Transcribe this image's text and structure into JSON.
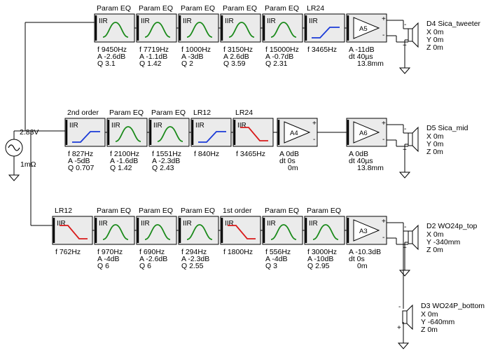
{
  "source": {
    "voltage": "2.83V",
    "resistance": "1mΩ"
  },
  "block_iir_label": "IIR",
  "chains": [
    {
      "blocks": [
        {
          "title": "Param EQ",
          "icon": "bell-curve-icon",
          "color": "#1a8a1a",
          "params": [
            "f  9450Hz",
            "A  -2.6dB",
            "Q  3.1"
          ]
        },
        {
          "title": "Param EQ",
          "icon": "bell-curve-icon",
          "color": "#1a8a1a",
          "params": [
            "f  7719Hz",
            "A  -1.1dB",
            "Q  1.42"
          ]
        },
        {
          "title": "Param EQ",
          "icon": "bell-curve-icon",
          "color": "#1a8a1a",
          "params": [
            "f  1000Hz",
            "A  -3dB",
            "Q  2"
          ]
        },
        {
          "title": "Param EQ",
          "icon": "bell-curve-icon",
          "color": "#1a8a1a",
          "params": [
            "f  3150Hz",
            "A  2.6dB",
            "Q  3.59"
          ]
        },
        {
          "title": "Param EQ",
          "icon": "bell-curve-icon",
          "color": "#1a8a1a",
          "params": [
            "f  15000Hz",
            "A  -0.7dB",
            "Q  2.31"
          ]
        },
        {
          "title": "LR24",
          "icon": "highpass-icon",
          "color": "#1a3ad8",
          "params": [
            "f  3465Hz"
          ]
        }
      ],
      "amps": [
        {
          "label": "A5",
          "params": [
            "A  -11dB",
            "dt 40µs",
            "13.8mm"
          ]
        }
      ],
      "driver": {
        "name": "D4 Sica_tweeter",
        "color": "#e89a1a",
        "coords": [
          "X 0m",
          "Y 0m",
          "Z 0m"
        ]
      }
    },
    {
      "blocks": [
        {
          "title": "2nd order",
          "icon": "highpass-icon",
          "color": "#1a3ad8",
          "params": [
            "f  827Hz",
            "A  -5dB",
            "Q  0.707"
          ]
        },
        {
          "title": "Param EQ",
          "icon": "bell-curve-icon",
          "color": "#1a8a1a",
          "params": [
            "f  2100Hz",
            "A  -1.6dB",
            "Q  1.42"
          ]
        },
        {
          "title": "Param EQ",
          "icon": "bell-curve-icon",
          "color": "#1a8a1a",
          "params": [
            "f  1551Hz",
            "A  -2.3dB",
            "Q  2.43"
          ]
        },
        {
          "title": "LR12",
          "icon": "highpass-icon",
          "color": "#1a3ad8",
          "params": [
            "f  840Hz"
          ]
        },
        {
          "title": "LR24",
          "icon": "lowpass-icon",
          "color": "#d81a1a",
          "params": [
            "f  3465Hz"
          ]
        }
      ],
      "amps": [
        {
          "label": "A4",
          "params": [
            "A  0dB",
            "dt 0s",
            "0m"
          ]
        },
        {
          "label": "A6",
          "params": [
            "A  0dB",
            "dt 40µs",
            "13.8mm"
          ]
        }
      ],
      "driver": {
        "name": "D5 Sica_mid",
        "color": "#1a3ad8",
        "coords": [
          "X 0m",
          "Y 0m",
          "Z 0m"
        ]
      }
    },
    {
      "blocks": [
        {
          "title": "LR12",
          "icon": "lowpass-icon",
          "color": "#d81a1a",
          "params": [
            "f  762Hz"
          ]
        },
        {
          "title": "Param EQ",
          "icon": "bell-curve-icon",
          "color": "#1a8a1a",
          "params": [
            "f  970Hz",
            "A  -4dB",
            "Q  6"
          ]
        },
        {
          "title": "Param EQ",
          "icon": "bell-curve-icon",
          "color": "#1a8a1a",
          "params": [
            "f  690Hz",
            "A  -2.6dB",
            "Q  6"
          ]
        },
        {
          "title": "Param EQ",
          "icon": "bell-curve-icon",
          "color": "#1a8a1a",
          "params": [
            "f  294Hz",
            "A  -2.3dB",
            "Q  2.55"
          ]
        },
        {
          "title": "1st order",
          "icon": "lowpass-icon",
          "color": "#d81a1a",
          "params": [
            "f  1800Hz"
          ]
        },
        {
          "title": "Param EQ",
          "icon": "bell-curve-icon",
          "color": "#1a8a1a",
          "params": [
            "f  556Hz",
            "A  -4dB",
            "Q  3"
          ]
        },
        {
          "title": "Param EQ",
          "icon": "bell-curve-icon",
          "color": "#1a8a1a",
          "params": [
            "f  3000Hz",
            "A  -10dB",
            "Q  2.95"
          ]
        }
      ],
      "amps": [
        {
          "label": "A3",
          "params": [
            "A  -10.3dB",
            "dt 0s",
            "0m"
          ]
        }
      ],
      "driver": {
        "name": "D2 WO24p_top",
        "color": "#d81a1a",
        "coords": [
          "X 0m",
          "Y -340mm",
          "Z 0m"
        ]
      }
    }
  ],
  "extra_driver": {
    "name": "D3 WO24P_bottom",
    "color": "#1a8a1a",
    "coords": [
      "X 0m",
      "Y -640mm",
      "Z 0m"
    ]
  }
}
